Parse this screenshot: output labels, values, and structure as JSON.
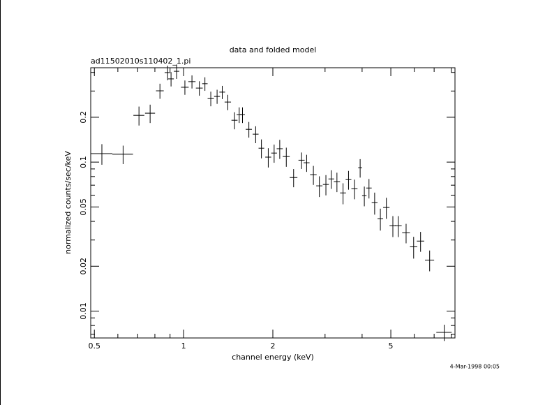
{
  "chart_data": {
    "type": "scatter",
    "title": "data and folded model",
    "subtitle": "ad11502010s110402_1.pi",
    "x_label": "channel energy (keV)",
    "y_label": "normalized counts/sec/keV",
    "timestamp": "4-Mar-1998 00:05",
    "log_x": true,
    "log_y": true,
    "color": "#000000",
    "xlim": [
      0.486,
      8.23
    ],
    "ylim": [
      0.0066,
      0.43
    ],
    "xticks": [
      0.5,
      1,
      2,
      5
    ],
    "yticks": [
      0.01,
      0.02,
      0.05,
      0.1,
      0.2
    ],
    "xminorticks": [
      0.6,
      0.7,
      0.8,
      0.9,
      3,
      4,
      6,
      7,
      8
    ],
    "yminorticks": [
      0.007,
      0.008,
      0.009,
      0.03,
      0.04,
      0.06,
      0.07,
      0.08,
      0.09,
      0.3,
      0.4
    ],
    "x": [
      0.53,
      0.625,
      0.707,
      0.771,
      0.832,
      0.883,
      0.907,
      0.947,
      1.01,
      1.067,
      1.13,
      1.18,
      1.235,
      1.297,
      1.35,
      1.41,
      1.485,
      1.54,
      1.58,
      1.66,
      1.75,
      1.83,
      1.93,
      2.02,
      2.11,
      2.22,
      2.35,
      2.5,
      2.6,
      2.74,
      2.87,
      3.02,
      3.15,
      3.29,
      3.45,
      3.6,
      3.77,
      3.94,
      4.07,
      4.22,
      4.41,
      4.61,
      4.83,
      5.08,
      5.3,
      5.63,
      5.97,
      6.3,
      6.76,
      7.57
    ],
    "xerr": [
      0.045,
      0.05,
      0.03,
      0.03,
      0.025,
      0.02,
      0.02,
      0.02,
      0.03,
      0.03,
      0.03,
      0.025,
      0.03,
      0.03,
      0.03,
      0.035,
      0.035,
      0.03,
      0.03,
      0.04,
      0.04,
      0.04,
      0.045,
      0.045,
      0.05,
      0.06,
      0.07,
      0.06,
      0.06,
      0.07,
      0.07,
      0.07,
      0.07,
      0.08,
      0.08,
      0.08,
      0.09,
      0.06,
      0.07,
      0.09,
      0.1,
      0.1,
      0.12,
      0.13,
      0.14,
      0.17,
      0.17,
      0.18,
      0.24,
      0.45
    ],
    "y": [
      0.114,
      0.113,
      0.206,
      0.213,
      0.301,
      0.399,
      0.362,
      0.407,
      0.318,
      0.347,
      0.314,
      0.336,
      0.267,
      0.276,
      0.295,
      0.253,
      0.191,
      0.208,
      0.208,
      0.166,
      0.154,
      0.124,
      0.108,
      0.115,
      0.123,
      0.109,
      0.0788,
      0.103,
      0.099,
      0.0823,
      0.0693,
      0.0708,
      0.0771,
      0.0739,
      0.0621,
      0.0763,
      0.0663,
      0.0917,
      0.0595,
      0.067,
      0.0534,
      0.0417,
      0.0496,
      0.0374,
      0.0374,
      0.0335,
      0.027,
      0.0295,
      0.022,
      0.0072
    ],
    "yerr": [
      0.018,
      0.016,
      0.03,
      0.03,
      0.035,
      0.045,
      0.04,
      0.045,
      0.035,
      0.035,
      0.035,
      0.035,
      0.03,
      0.03,
      0.03,
      0.03,
      0.025,
      0.025,
      0.025,
      0.02,
      0.02,
      0.018,
      0.016,
      0.016,
      0.018,
      0.016,
      0.011,
      0.013,
      0.013,
      0.012,
      0.011,
      0.011,
      0.011,
      0.011,
      0.01,
      0.011,
      0.01,
      0.013,
      0.009,
      0.01,
      0.009,
      0.007,
      0.008,
      0.006,
      0.006,
      0.005,
      0.0045,
      0.0045,
      0.0035,
      0.0009
    ]
  }
}
